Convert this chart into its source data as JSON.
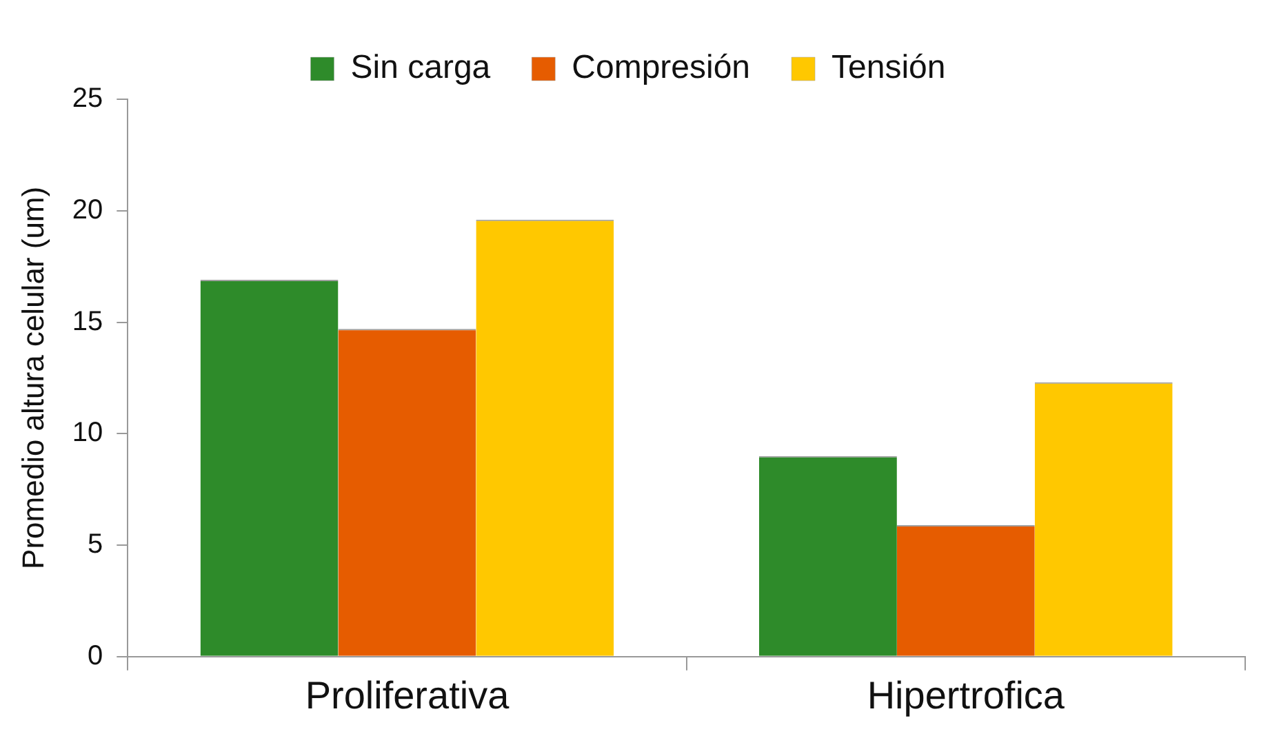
{
  "chart_data": {
    "type": "bar",
    "ylabel": "Promedio altura celular (um)",
    "categories": [
      "Proliferativa",
      "Hipertrofica"
    ],
    "series": [
      {
        "name": "Sin carga",
        "color": "#2e8b2a",
        "values": [
          16.9,
          9.0
        ]
      },
      {
        "name": "Compresión",
        "color": "#e65c00",
        "values": [
          14.7,
          5.9
        ]
      },
      {
        "name": "Tensión",
        "color": "#ffc800",
        "values": [
          19.6,
          12.3
        ]
      }
    ],
    "ylim": [
      0,
      25
    ],
    "yticks": [
      0,
      5,
      10,
      15,
      20,
      25
    ],
    "grid": false,
    "legend": "top"
  }
}
